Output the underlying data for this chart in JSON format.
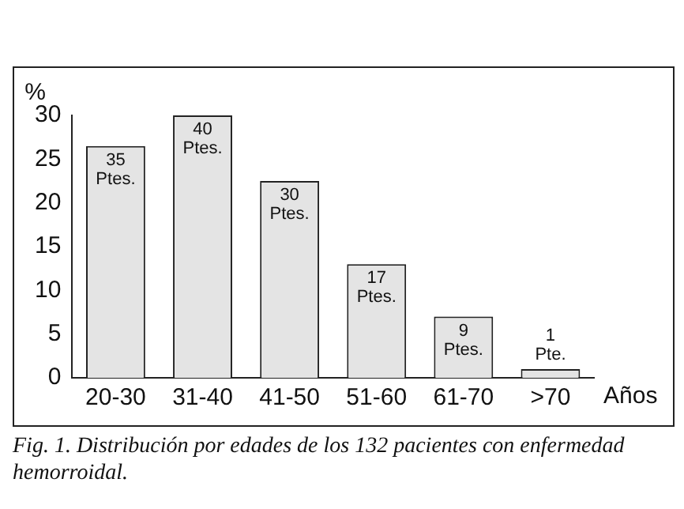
{
  "chart_data": {
    "type": "bar",
    "categories": [
      "20-30",
      "31-40",
      "41-50",
      "51-60",
      "61-70",
      ">70"
    ],
    "values": [
      26.5,
      30,
      22.5,
      13,
      7,
      1
    ],
    "color": "#e4e4e4",
    "ylabel": "%",
    "xlabel": "Años",
    "ylim": [
      0,
      30
    ],
    "yticks": [
      0,
      5,
      10,
      15,
      20,
      25,
      30
    ],
    "grid": false,
    "legend": false,
    "annotations": [
      {
        "text": "35 Ptes.",
        "x": "20-30",
        "y": 26.5
      },
      {
        "text": "40 Ptes.",
        "x": "31-40",
        "y": 30
      },
      {
        "text": "30 Ptes.",
        "x": "41-50",
        "y": 22.5
      },
      {
        "text": "17 Ptes.",
        "x": "51-60",
        "y": 13
      },
      {
        "text": "9 Ptes.",
        "x": "61-70",
        "y": 7
      },
      {
        "text": "1 Pte.",
        "x": ">70",
        "y": 1
      },
      "Fig. 1. Distribución por edades de los 132 pacientes con enfermedad hemorroidal."
    ]
  }
}
